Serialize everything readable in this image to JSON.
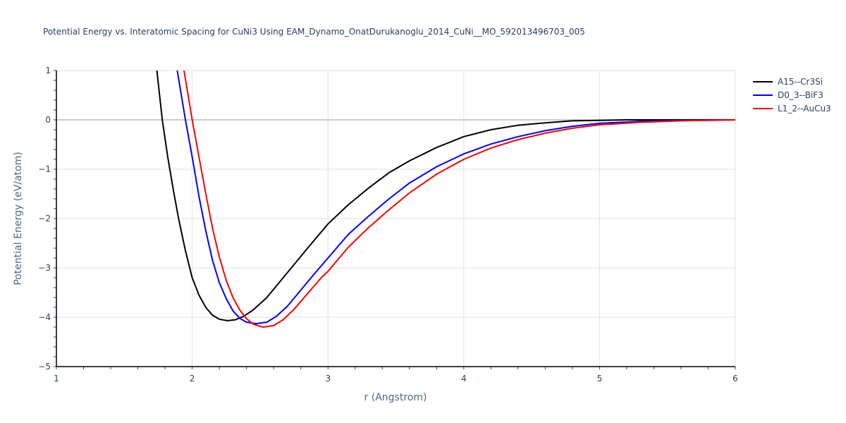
{
  "chart_data": {
    "type": "line",
    "title": "Potential Energy vs. Interatomic Spacing for CuNi3 Using EAM_Dynamo_OnatDurukanoglu_2014_CuNi__MO_592013496703_005",
    "xlabel": "r (Angstrom)",
    "ylabel": "Potential Energy (eV/atom)",
    "xlim": [
      1,
      6
    ],
    "ylim": [
      -5,
      1
    ],
    "xticks": [
      1,
      2,
      3,
      4,
      5,
      6
    ],
    "yticks": [
      1,
      0,
      -1,
      -2,
      -3,
      -4,
      -5
    ],
    "grid": true,
    "legend_position": "right-top",
    "series": [
      {
        "name": "A15--Cr3Si",
        "color": "#000000",
        "x": [
          1.74,
          1.78,
          1.82,
          1.86,
          1.9,
          1.95,
          2.0,
          2.05,
          2.1,
          2.15,
          2.2,
          2.26,
          2.32,
          2.38,
          2.45,
          2.55,
          2.7,
          2.85,
          3.0,
          3.15,
          3.3,
          3.45,
          3.6,
          3.8,
          4.0,
          4.2,
          4.4,
          4.6,
          4.8,
          5.0,
          5.2,
          5.5,
          6.0
        ],
        "y": [
          1.0,
          0.0,
          -0.75,
          -1.4,
          -2.0,
          -2.65,
          -3.2,
          -3.55,
          -3.8,
          -3.96,
          -4.04,
          -4.07,
          -4.05,
          -3.98,
          -3.85,
          -3.6,
          -3.1,
          -2.6,
          -2.11,
          -1.72,
          -1.38,
          -1.07,
          -0.83,
          -0.56,
          -0.34,
          -0.2,
          -0.11,
          -0.06,
          -0.02,
          -0.01,
          0.0,
          0.0,
          0.0
        ]
      },
      {
        "name": "D0_3--BiF3",
        "color": "#0000ff",
        "x": [
          1.89,
          1.92,
          1.95,
          2.0,
          2.05,
          2.1,
          2.15,
          2.2,
          2.25,
          2.3,
          2.35,
          2.4,
          2.47,
          2.55,
          2.62,
          2.7,
          2.8,
          2.9,
          3.0,
          3.15,
          3.3,
          3.45,
          3.6,
          3.8,
          4.0,
          4.2,
          4.4,
          4.6,
          4.8,
          5.0,
          5.3,
          5.6,
          6.0
        ],
        "y": [
          1.0,
          0.5,
          0.0,
          -0.75,
          -1.55,
          -2.25,
          -2.85,
          -3.3,
          -3.62,
          -3.87,
          -4.02,
          -4.1,
          -4.13,
          -4.1,
          -3.98,
          -3.78,
          -3.45,
          -3.12,
          -2.8,
          -2.32,
          -1.95,
          -1.6,
          -1.28,
          -0.95,
          -0.69,
          -0.49,
          -0.34,
          -0.22,
          -0.13,
          -0.07,
          -0.03,
          -0.01,
          0.0
        ]
      },
      {
        "name": "L1_2--AuCu3",
        "color": "#ff0000",
        "x": [
          1.94,
          1.97,
          2.0,
          2.05,
          2.1,
          2.15,
          2.2,
          2.25,
          2.3,
          2.35,
          2.4,
          2.45,
          2.52,
          2.6,
          2.67,
          2.75,
          2.85,
          2.95,
          3.0,
          3.15,
          3.3,
          3.45,
          3.6,
          3.8,
          4.0,
          4.2,
          4.4,
          4.6,
          4.8,
          5.0,
          5.3,
          5.6,
          6.0
        ],
        "y": [
          1.0,
          0.5,
          0.0,
          -0.75,
          -1.5,
          -2.2,
          -2.78,
          -3.25,
          -3.6,
          -3.85,
          -4.03,
          -4.14,
          -4.2,
          -4.17,
          -4.05,
          -3.84,
          -3.52,
          -3.2,
          -3.07,
          -2.58,
          -2.18,
          -1.82,
          -1.48,
          -1.1,
          -0.8,
          -0.57,
          -0.4,
          -0.27,
          -0.17,
          -0.1,
          -0.05,
          -0.02,
          0.0
        ]
      }
    ]
  },
  "legend": {
    "items": [
      {
        "label": "A15--Cr3Si",
        "color": "#000000"
      },
      {
        "label": "D0_3--BiF3",
        "color": "#0000ff"
      },
      {
        "label": "L1_2--AuCu3",
        "color": "#ff0000"
      }
    ]
  }
}
